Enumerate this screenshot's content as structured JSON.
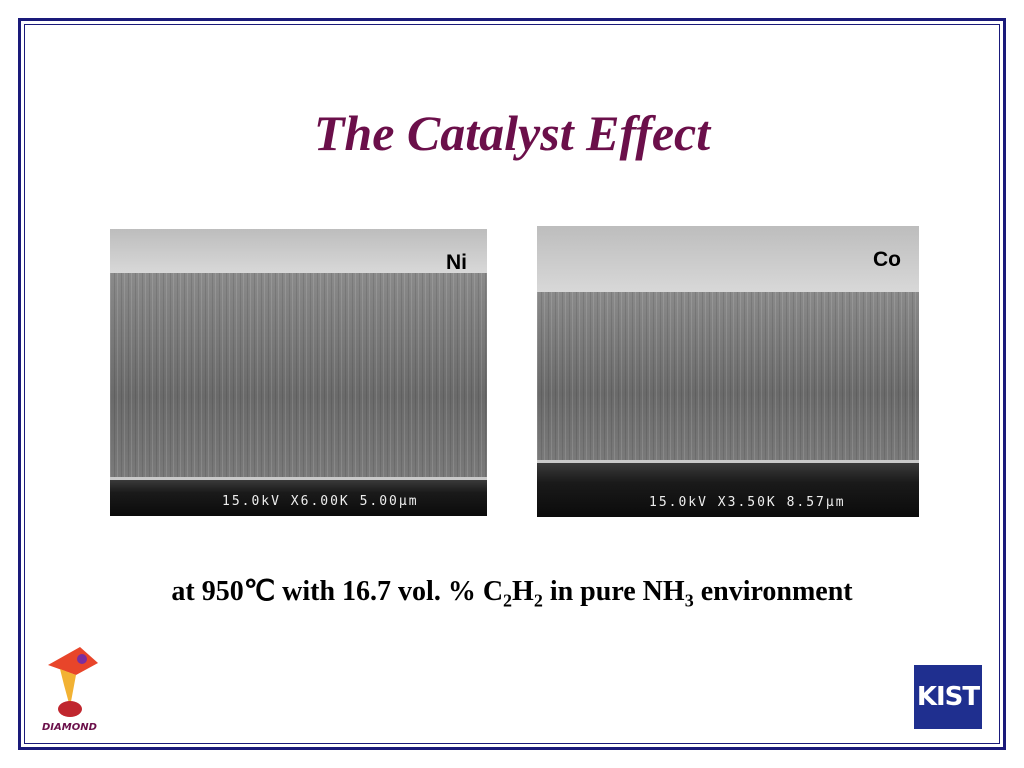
{
  "title": "The Catalyst Effect",
  "images": [
    {
      "label": "Ni",
      "info": "15.0kV X6.00K 5.00µm"
    },
    {
      "label": "Co",
      "info": "15.0kV X3.50K 8.57µm"
    }
  ],
  "caption": [
    "at 950℃ with 16.7 vol. % C",
    "2",
    "H",
    "2",
    " in pure NH",
    "3",
    " environment"
  ],
  "logos": {
    "left": "DIAMOND",
    "right": "KIST"
  }
}
